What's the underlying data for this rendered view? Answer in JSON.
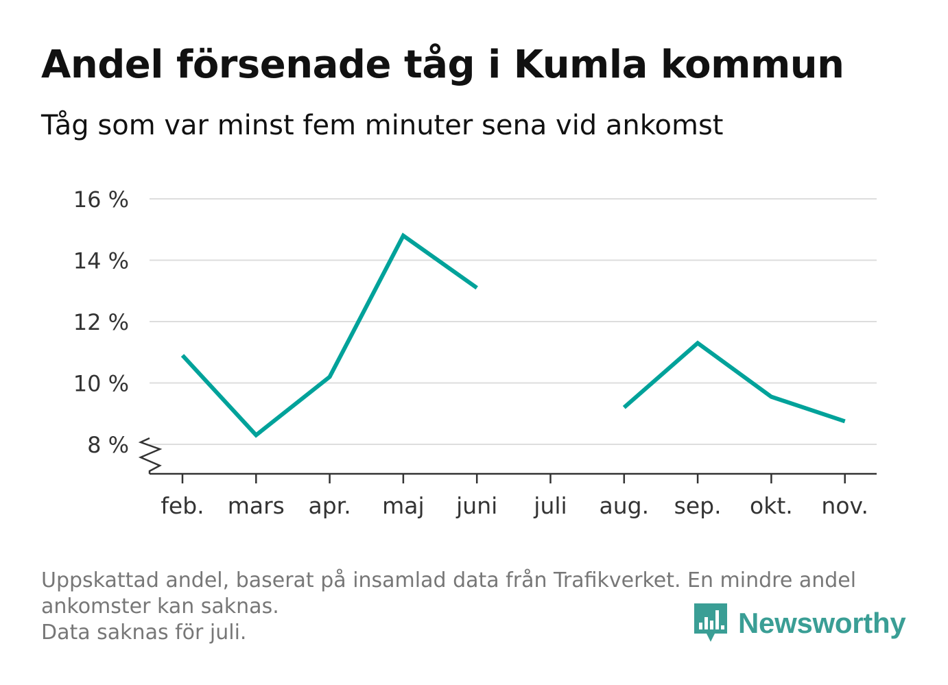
{
  "title": "Andel försenade tåg i Kumla kommun",
  "subtitle": "Tåg som var minst fem minuter sena vid ankomst",
  "footnote": [
    "Uppskattad andel, baserat på insamlad data från Trafikverket. En mindre andel",
    "ankomster kan saknas.",
    "Data saknas för juli."
  ],
  "brand": {
    "name": "Newsworthy",
    "color": "#3a9e95",
    "icon": "bar-chart-speech-bubble-icon"
  },
  "colors": {
    "line": "#00a29a",
    "grid": "#dddddd",
    "axis": "#333333",
    "text": "#333333"
  },
  "chart_data": {
    "type": "line",
    "title": "Andel försenade tåg i Kumla kommun",
    "subtitle": "Tåg som var minst fem minuter sena vid ankomst",
    "xlabel": "",
    "ylabel": "",
    "categories": [
      "feb.",
      "mars",
      "apr.",
      "maj",
      "juni",
      "juli",
      "aug.",
      "sep.",
      "okt.",
      "nov."
    ],
    "values": [
      10.9,
      8.3,
      10.2,
      14.8,
      13.1,
      null,
      9.2,
      11.3,
      9.55,
      8.75
    ],
    "yticks": [
      8,
      10,
      12,
      14,
      16
    ],
    "ytick_labels": [
      "8 %",
      "10 %",
      "12 %",
      "14 %",
      "16 %"
    ],
    "ylim": [
      7.05,
      16
    ],
    "grid": true,
    "legend": "none",
    "axis_break": true
  }
}
